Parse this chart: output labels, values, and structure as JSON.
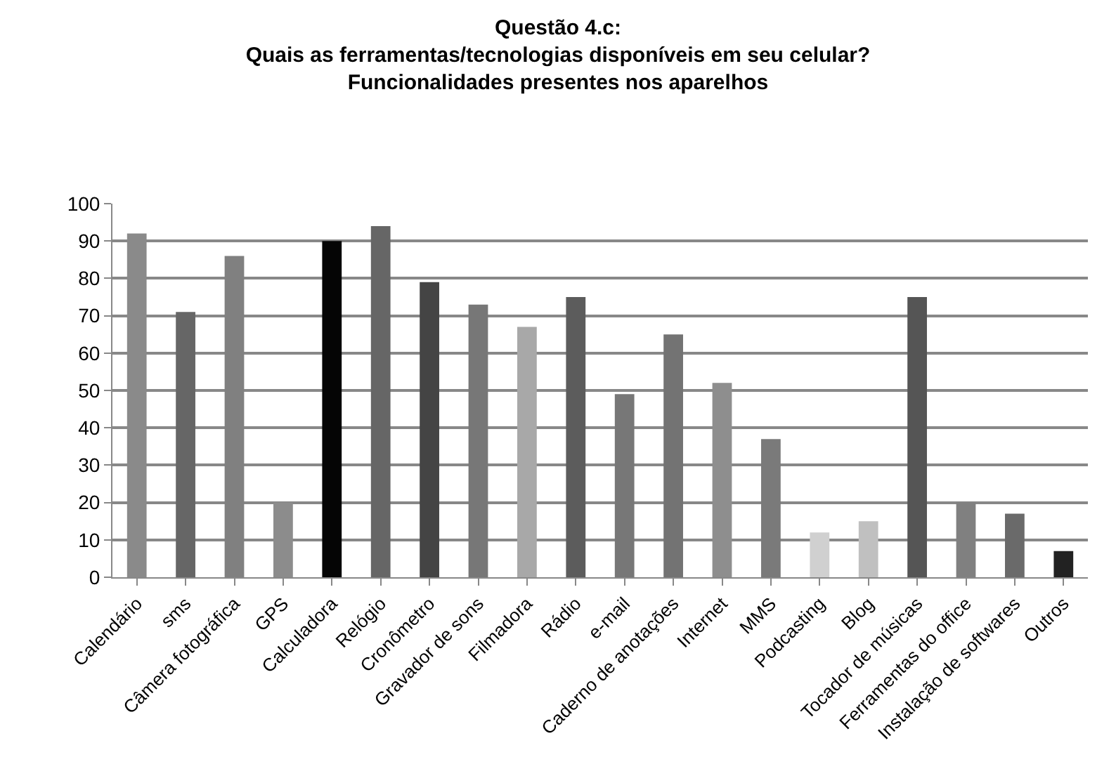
{
  "chart_data": {
    "type": "bar",
    "title": "Questão 4.c:\nQuais as ferramentas/tecnologias disponíveis em seu celular?\nFuncionalidades presentes nos aparelhos",
    "categories": [
      "Calendário",
      "sms",
      "Câmera fotográfica",
      "GPS",
      "Calculadora",
      "Relógio",
      "Cronômetro",
      "Gravador de sons",
      "Filmadora",
      "Rádio",
      "e-mail",
      "Caderno de anotações",
      "Internet",
      "MMS",
      "Podcasting",
      "Blog",
      "Tocador de músicas",
      "Ferramentas do office",
      "Instalação de softwares",
      "Outros"
    ],
    "values": [
      92,
      71,
      86,
      20,
      90,
      94,
      79,
      73,
      67,
      75,
      49,
      65,
      52,
      37,
      12,
      15,
      75,
      20,
      17,
      7
    ],
    "colors": [
      "#8a8a8a",
      "#666666",
      "#808080",
      "#8c8c8c",
      "#050505",
      "#666666",
      "#444444",
      "#777777",
      "#a8a8a8",
      "#5c5c5c",
      "#777777",
      "#737373",
      "#8e8e8e",
      "#7a7a7a",
      "#d0d0d0",
      "#c0c0c0",
      "#555555",
      "#808080",
      "#6a6a6a",
      "#222222"
    ],
    "ylim": [
      0,
      100
    ],
    "yticks": [
      0,
      10,
      20,
      30,
      40,
      50,
      60,
      70,
      80,
      90,
      100
    ],
    "grid": "y"
  }
}
